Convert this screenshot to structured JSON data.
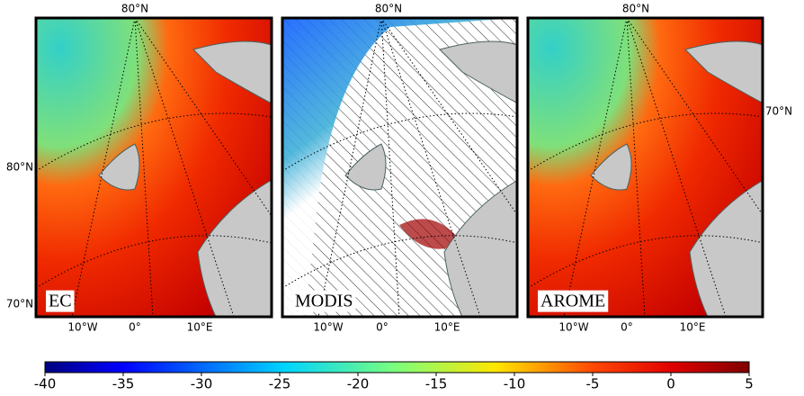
{
  "panels": [
    {
      "label": "EC",
      "top": "80°N",
      "side": [
        "80°N",
        "70°N"
      ],
      "bottom": [
        "10°W",
        "0°",
        "10°E"
      ]
    },
    {
      "label": "MODIS",
      "top": "80°N",
      "side": [],
      "bottom": [
        "10°W",
        "0°",
        "10°E"
      ]
    },
    {
      "label": "AROME",
      "top": "80°N",
      "side": [
        "70°N"
      ],
      "bottom": [
        "10°W",
        "0°",
        "10°E"
      ]
    }
  ],
  "colorbar": {
    "lim": [
      -40,
      5
    ],
    "ticks": [
      -40,
      -35,
      -30,
      -25,
      -20,
      -15,
      -10,
      -5,
      0,
      5
    ]
  }
}
